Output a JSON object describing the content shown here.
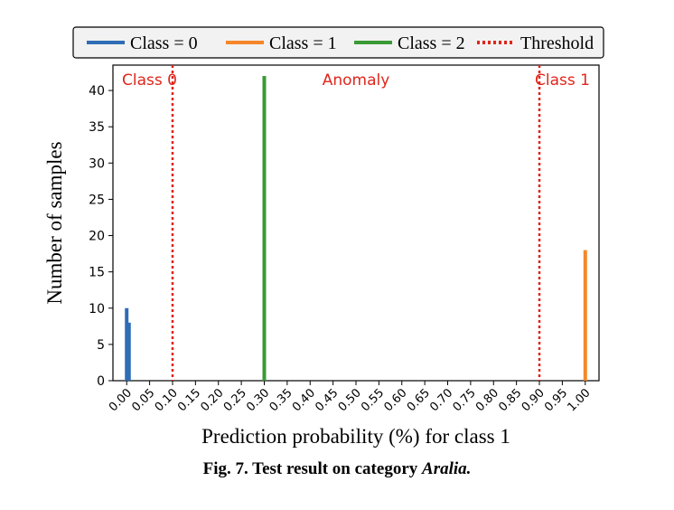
{
  "chart_data": {
    "type": "bar",
    "xlabel": "Prediction probability (%) for class 1",
    "ylabel": "Number of samples",
    "x_ticks": [
      "0.00",
      "0.05",
      "0.10",
      "0.15",
      "0.20",
      "0.25",
      "0.30",
      "0.35",
      "0.40",
      "0.45",
      "0.50",
      "0.55",
      "0.60",
      "0.65",
      "0.70",
      "0.75",
      "0.80",
      "0.85",
      "0.90",
      "0.95",
      "1.00"
    ],
    "y_ticks": [
      "0",
      "5",
      "10",
      "15",
      "20",
      "25",
      "30",
      "35",
      "40"
    ],
    "xlim": [
      -0.03,
      1.03
    ],
    "ylim": [
      0,
      43.5
    ],
    "grid": false,
    "legend_position": "top",
    "series": [
      {
        "name": "Class = 0",
        "color": "#2f6db5",
        "bars": [
          {
            "x": 0.0,
            "y": 10
          },
          {
            "x": 0.005,
            "y": 8
          }
        ]
      },
      {
        "name": "Class = 1",
        "color": "#f5872a",
        "bars": [
          {
            "x": 1.0,
            "y": 18
          }
        ]
      },
      {
        "name": "Class = 2",
        "color": "#3a9a35",
        "bars": [
          {
            "x": 0.3,
            "y": 42
          }
        ]
      }
    ],
    "thresholds": {
      "name": "Threshold",
      "color": "#e0261c",
      "values": [
        0.1,
        0.9
      ]
    },
    "annotations": [
      {
        "text": "Class 0",
        "color": "#e0261c"
      },
      {
        "text": "Anomaly",
        "color": "#e0261c"
      },
      {
        "text": "Class 1",
        "color": "#e0261c"
      }
    ]
  },
  "caption": {
    "prefix": "Fig. 7. Test result on category ",
    "italic": "Aralia."
  }
}
